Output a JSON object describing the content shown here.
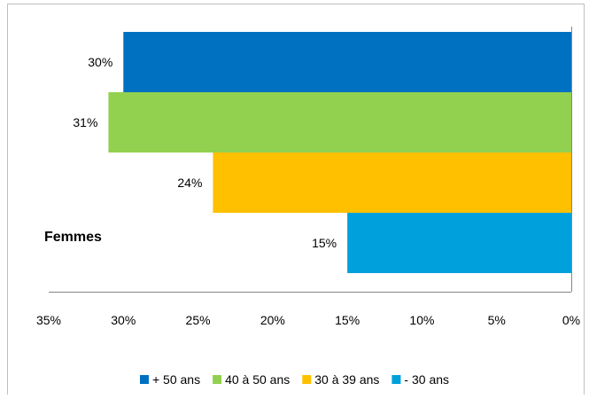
{
  "chart_data": {
    "type": "bar",
    "orientation": "horizontal-reversed",
    "categories": [
      "Femmes"
    ],
    "series": [
      {
        "name": "+ 50 ans",
        "values": [
          30
        ],
        "color": "#0070C0",
        "label": "30%"
      },
      {
        "name": "40 à 50 ans",
        "values": [
          31
        ],
        "color": "#92D050",
        "label": "31%"
      },
      {
        "name": "30 à 39 ans",
        "values": [
          24
        ],
        "color": "#FFC000",
        "label": "24%"
      },
      {
        "name": "- 30 ans",
        "values": [
          15
        ],
        "color": "#00A0DC",
        "label": "15%"
      }
    ],
    "xlim": [
      0,
      35
    ],
    "x_ticks": [
      {
        "value": 35,
        "label": "35%"
      },
      {
        "value": 30,
        "label": "30%"
      },
      {
        "value": 25,
        "label": "25%"
      },
      {
        "value": 20,
        "label": "20%"
      },
      {
        "value": 15,
        "label": "15%"
      },
      {
        "value": 10,
        "label": "10%"
      },
      {
        "value": 5,
        "label": "5%"
      },
      {
        "value": 0,
        "label": "0%"
      }
    ],
    "legend_position": "bottom",
    "grid": false
  }
}
